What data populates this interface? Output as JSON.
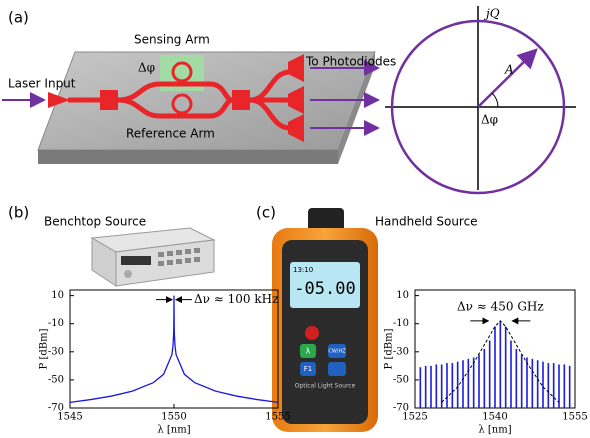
{
  "panels": {
    "a": {
      "label": "(a)",
      "sensing_arm": "Sensing Arm",
      "delta_phi": "Δφ",
      "laser_input": "Laser Input",
      "to_photodiodes": "To Photodiodes",
      "reference_arm": "Reference Arm",
      "phasor": {
        "axis_label": "jQ",
        "amplitude": "A",
        "angle": "Δφ"
      }
    },
    "b": {
      "label": "(b)",
      "title": "Benchtop Source"
    },
    "c": {
      "label": "(c)",
      "title": "Handheld Source",
      "device": {
        "time": "13:10",
        "display": "-05.00",
        "button_cw": "CW/HZ",
        "button_lambda": "λ",
        "button_f1": "F1",
        "caption": "Optical Light Source"
      }
    }
  },
  "chart_data": [
    {
      "type": "line",
      "annotation": "Δν ≈ 100 kHz",
      "x_label": "λ [nm]",
      "y_label": "P [dBm]",
      "x": [
        1545,
        1546,
        1547,
        1548,
        1549,
        1549.5,
        1549.9,
        1549.95,
        1549.98,
        1549.99,
        1550,
        1550.01,
        1550.02,
        1550.05,
        1550.1,
        1550.5,
        1551,
        1552,
        1553,
        1554,
        1555
      ],
      "values": [
        -66,
        -64,
        -61.5,
        -58,
        -52,
        -46,
        -32,
        -26,
        -18,
        -12,
        10,
        -12,
        -18,
        -26,
        -32,
        -46,
        -52,
        -58,
        -61.5,
        -64,
        -66
      ],
      "color": "#1a1adc",
      "xlim": [
        1545,
        1555
      ],
      "xticks": [
        1545,
        1550,
        1555
      ],
      "ylim": [
        -70,
        14
      ],
      "yticks": [
        10,
        -10,
        -30,
        -50,
        -70
      ]
    },
    {
      "type": "comb",
      "annotation": "Δν ≈ 450 GHz",
      "x_label": "λ [nm]",
      "y_label": "P [dBm]",
      "x": [
        1526,
        1527,
        1528,
        1529,
        1530,
        1531,
        1532,
        1533,
        1534,
        1535,
        1536,
        1537,
        1538,
        1539,
        1540,
        1541,
        1542,
        1543,
        1544,
        1545,
        1546,
        1547,
        1548,
        1549,
        1550,
        1551,
        1552,
        1553,
        1554
      ],
      "values": [
        -41,
        -40,
        -40,
        -39,
        -39,
        -38,
        -38,
        -37,
        -36,
        -35,
        -34,
        -32,
        -28,
        -22,
        -12,
        -8,
        -12,
        -22,
        -28,
        -32,
        -34,
        -35,
        -36,
        -37,
        -38,
        -38,
        -39,
        -39,
        -40
      ],
      "color": "#1a1adc",
      "envelope": {
        "x": [
          1530,
          1533,
          1536,
          1538,
          1540,
          1541,
          1542,
          1544,
          1546,
          1549,
          1552
        ],
        "values": [
          -66,
          -55,
          -38,
          -25,
          -12,
          -8,
          -12,
          -25,
          -38,
          -55,
          -66
        ],
        "color": "#000000"
      },
      "xlim": [
        1525,
        1555
      ],
      "xticks": [
        1525,
        1540,
        1555
      ],
      "ylim": [
        -70,
        14
      ],
      "yticks": [
        10,
        -10,
        -30,
        -50,
        -70
      ]
    }
  ]
}
